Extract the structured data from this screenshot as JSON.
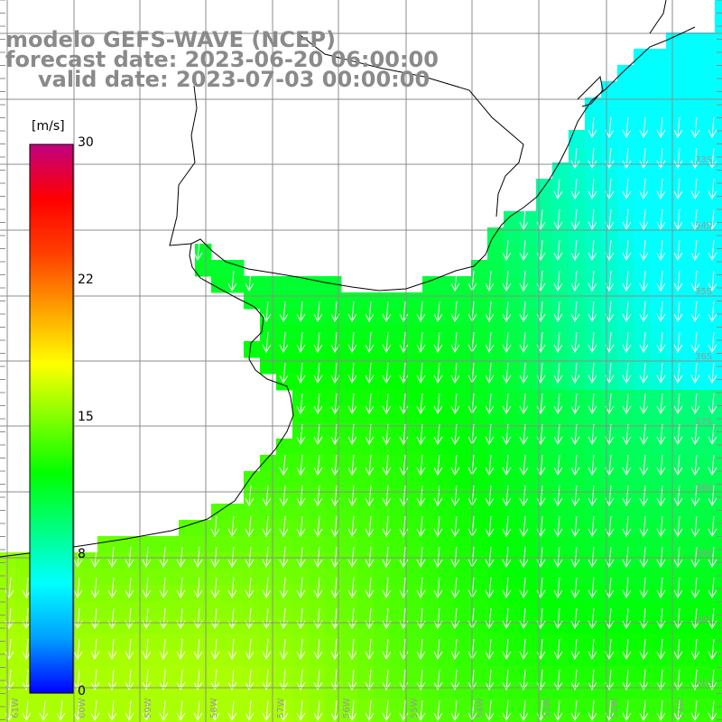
{
  "title": {
    "line1": "modelo GEFS-WAVE (NCEP)",
    "line2": "forecast date: 2023-06-20 06:00:00",
    "line3": "valid date: 2023-07-03 00:00:00"
  },
  "colorbar": {
    "unit": "[m/s]",
    "min": 0,
    "max": 30,
    "ticks": [
      "30",
      "22",
      "15",
      "8",
      "0"
    ],
    "tick_values": [
      30,
      22.5,
      15,
      7.5,
      0
    ],
    "colors": [
      "#0000ff",
      "#00a0ff",
      "#00ffff",
      "#00ff80",
      "#00ff00",
      "#80ff00",
      "#ffff00",
      "#ffa000",
      "#ff4000",
      "#ff0000",
      "#c00080"
    ]
  },
  "axes": {
    "lat_labels": [
      "33S",
      "34S",
      "35S",
      "36S",
      "37S",
      "38S",
      "39S",
      "40S",
      "41S"
    ],
    "lon_labels": [
      "61W",
      "60W",
      "59W",
      "58W",
      "57W",
      "56W",
      "55W",
      "54W",
      "53W",
      "52W",
      "51W"
    ]
  },
  "field": {
    "variable": "wind speed",
    "units": "m/s",
    "wind_direction": "from north (arrows pointing south)",
    "pattern": "about 7-8 m/s (blue-cyan) offshore to the east and north-east, about 11-13 m/s (green) in the central area and Rio de la Plata, about 13-15 m/s (yellow-green) in the south-west"
  },
  "colors": {
    "grid": "#8c8c8c",
    "coast": "#000000",
    "arrows": "#ffffff",
    "title": "#8a8a8a"
  }
}
